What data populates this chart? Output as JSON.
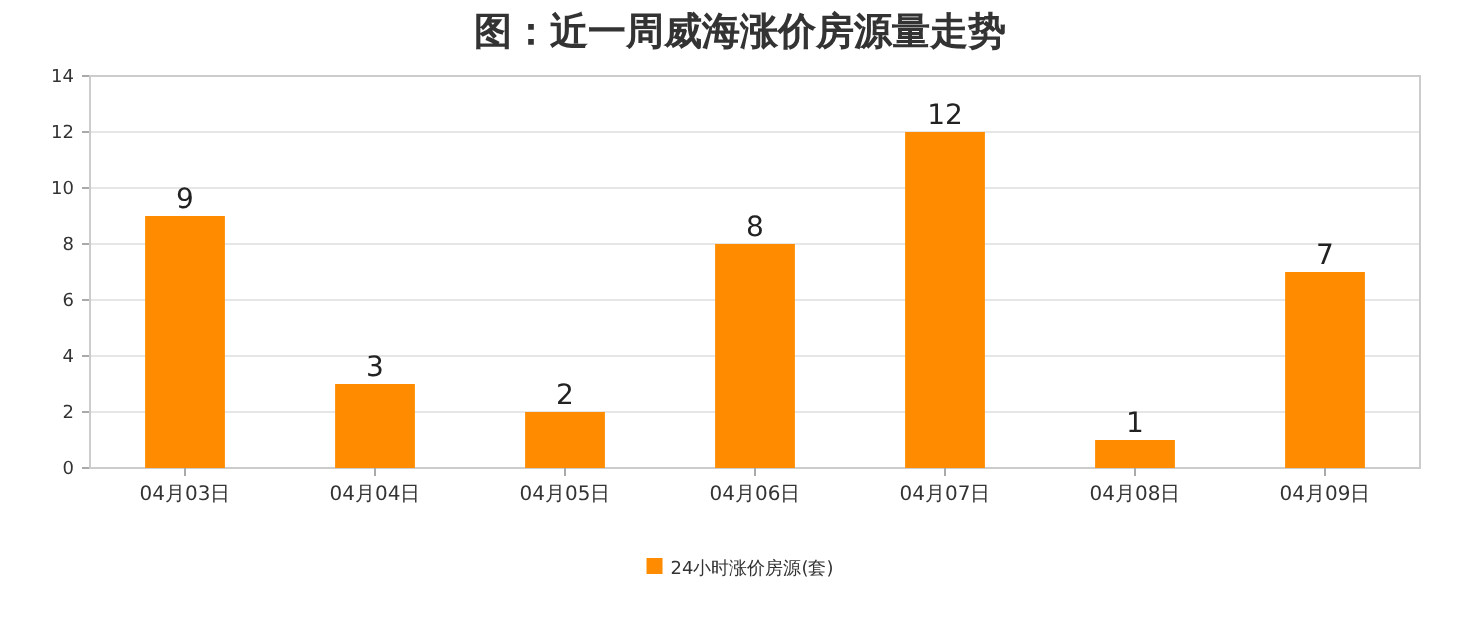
{
  "chart_data": {
    "type": "bar",
    "title": "图：近一周威海涨价房源量走势",
    "categories": [
      "04月03日",
      "04月04日",
      "04月05日",
      "04月06日",
      "04月07日",
      "04月08日",
      "04月09日"
    ],
    "series": [
      {
        "name": "24小时涨价房源(套)",
        "color": "#ff8c00",
        "values": [
          9,
          3,
          2,
          8,
          12,
          1,
          7
        ]
      }
    ],
    "ylim": [
      0,
      14
    ],
    "yticks": [
      0,
      2,
      4,
      6,
      8,
      10,
      12,
      14
    ],
    "grid": "y",
    "legend": "bottom",
    "data_labels": true
  }
}
